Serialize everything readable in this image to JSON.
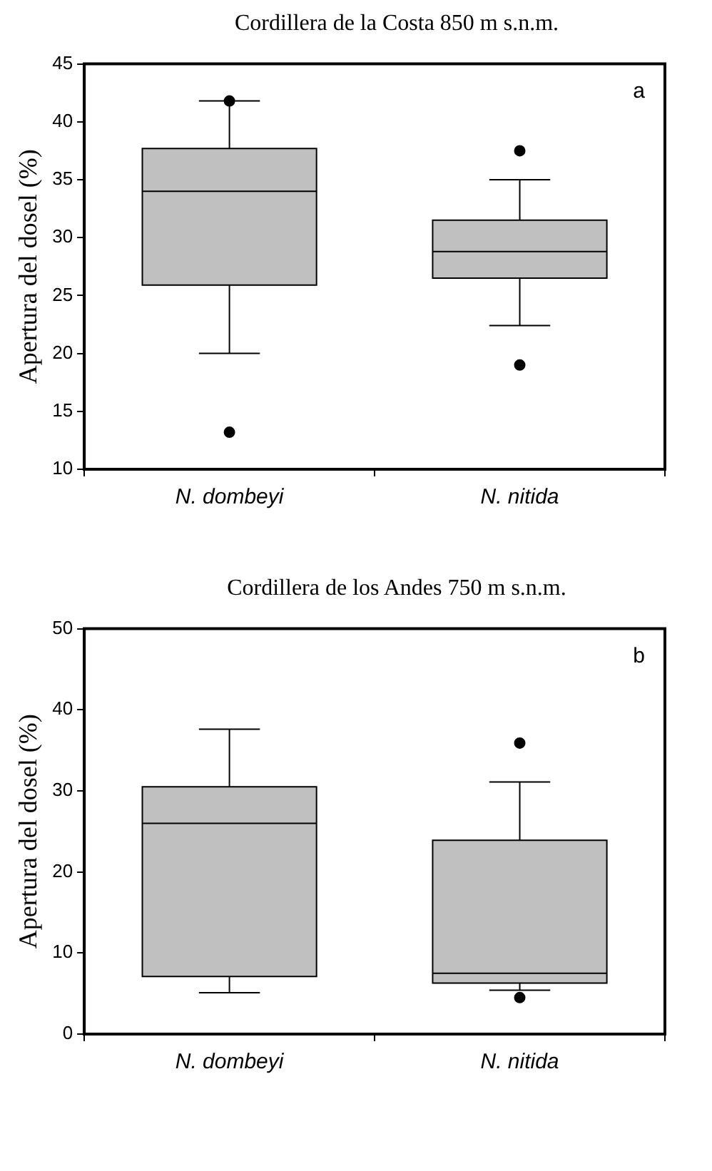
{
  "chart_data": [
    {
      "type": "box",
      "title": "Cordillera de la Costa 850 m s.n.m.",
      "ylabel": "Apertura del dosel (%)",
      "categories": [
        "N. dombeyi",
        "N. nitida"
      ],
      "color": "#c0c0c0",
      "ylim": [
        10,
        45
      ],
      "yticks": [
        10,
        15,
        20,
        25,
        30,
        35,
        40,
        45
      ],
      "grid": false,
      "legend": false,
      "annotations": [
        "a"
      ],
      "boxes": [
        {
          "low": 20.0,
          "q1": 25.9,
          "median": 34.0,
          "q3": 37.7,
          "high": 41.8,
          "outliers": [
            41.8,
            13.2
          ]
        },
        {
          "low": 22.4,
          "q1": 26.5,
          "median": 28.8,
          "q3": 31.5,
          "high": 35.0,
          "outliers": [
            37.5,
            19.0
          ]
        }
      ]
    },
    {
      "type": "box",
      "title": "Cordillera de los Andes 750 m s.n.m.",
      "ylabel": "Apertura del dosel (%)",
      "categories": [
        "N. dombeyi",
        "N. nitida"
      ],
      "color": "#c0c0c0",
      "ylim": [
        0,
        50
      ],
      "yticks": [
        0,
        10,
        20,
        30,
        40,
        50
      ],
      "grid": false,
      "legend": false,
      "annotations": [
        "b"
      ],
      "boxes": [
        {
          "low": 5.1,
          "q1": 7.1,
          "median": 26.0,
          "q3": 30.5,
          "high": 37.6
        },
        {
          "low": 5.4,
          "q1": 6.3,
          "median": 7.5,
          "q3": 23.9,
          "high": 31.1,
          "outliers": [
            35.9,
            4.5
          ]
        }
      ]
    }
  ]
}
